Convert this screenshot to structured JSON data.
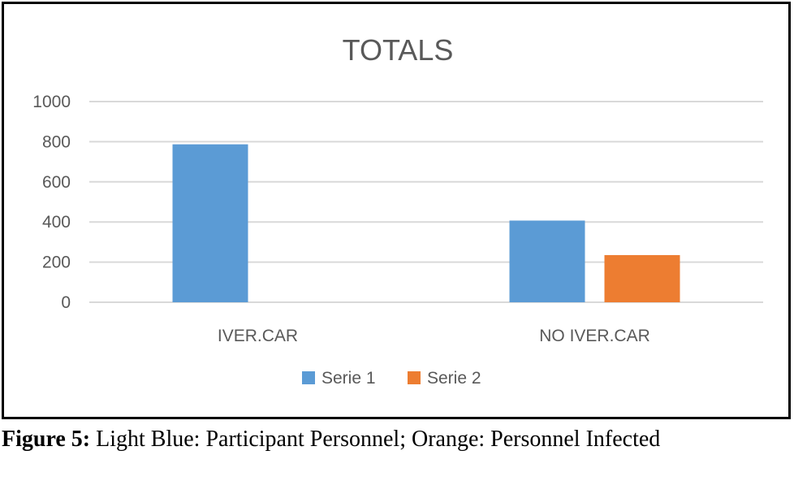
{
  "chart_data": {
    "type": "bar",
    "title": "TOTALS",
    "categories": [
      "IVER.CAR",
      "NO IVER.CAR"
    ],
    "series": [
      {
        "name": "Serie 1",
        "values": [
          787,
          407
        ],
        "color": "#5B9BD5"
      },
      {
        "name": "Serie 2",
        "values": [
          0,
          235
        ],
        "color": "#ED7D31"
      }
    ],
    "yticks": [
      0,
      200,
      400,
      600,
      800,
      1000
    ],
    "ylim": [
      0,
      1000
    ],
    "grid": true,
    "legend_position": "bottom"
  },
  "caption": {
    "label": "Figure 5:",
    "text": "Light Blue: Participant Personnel; Orange: Personnel Infected"
  }
}
